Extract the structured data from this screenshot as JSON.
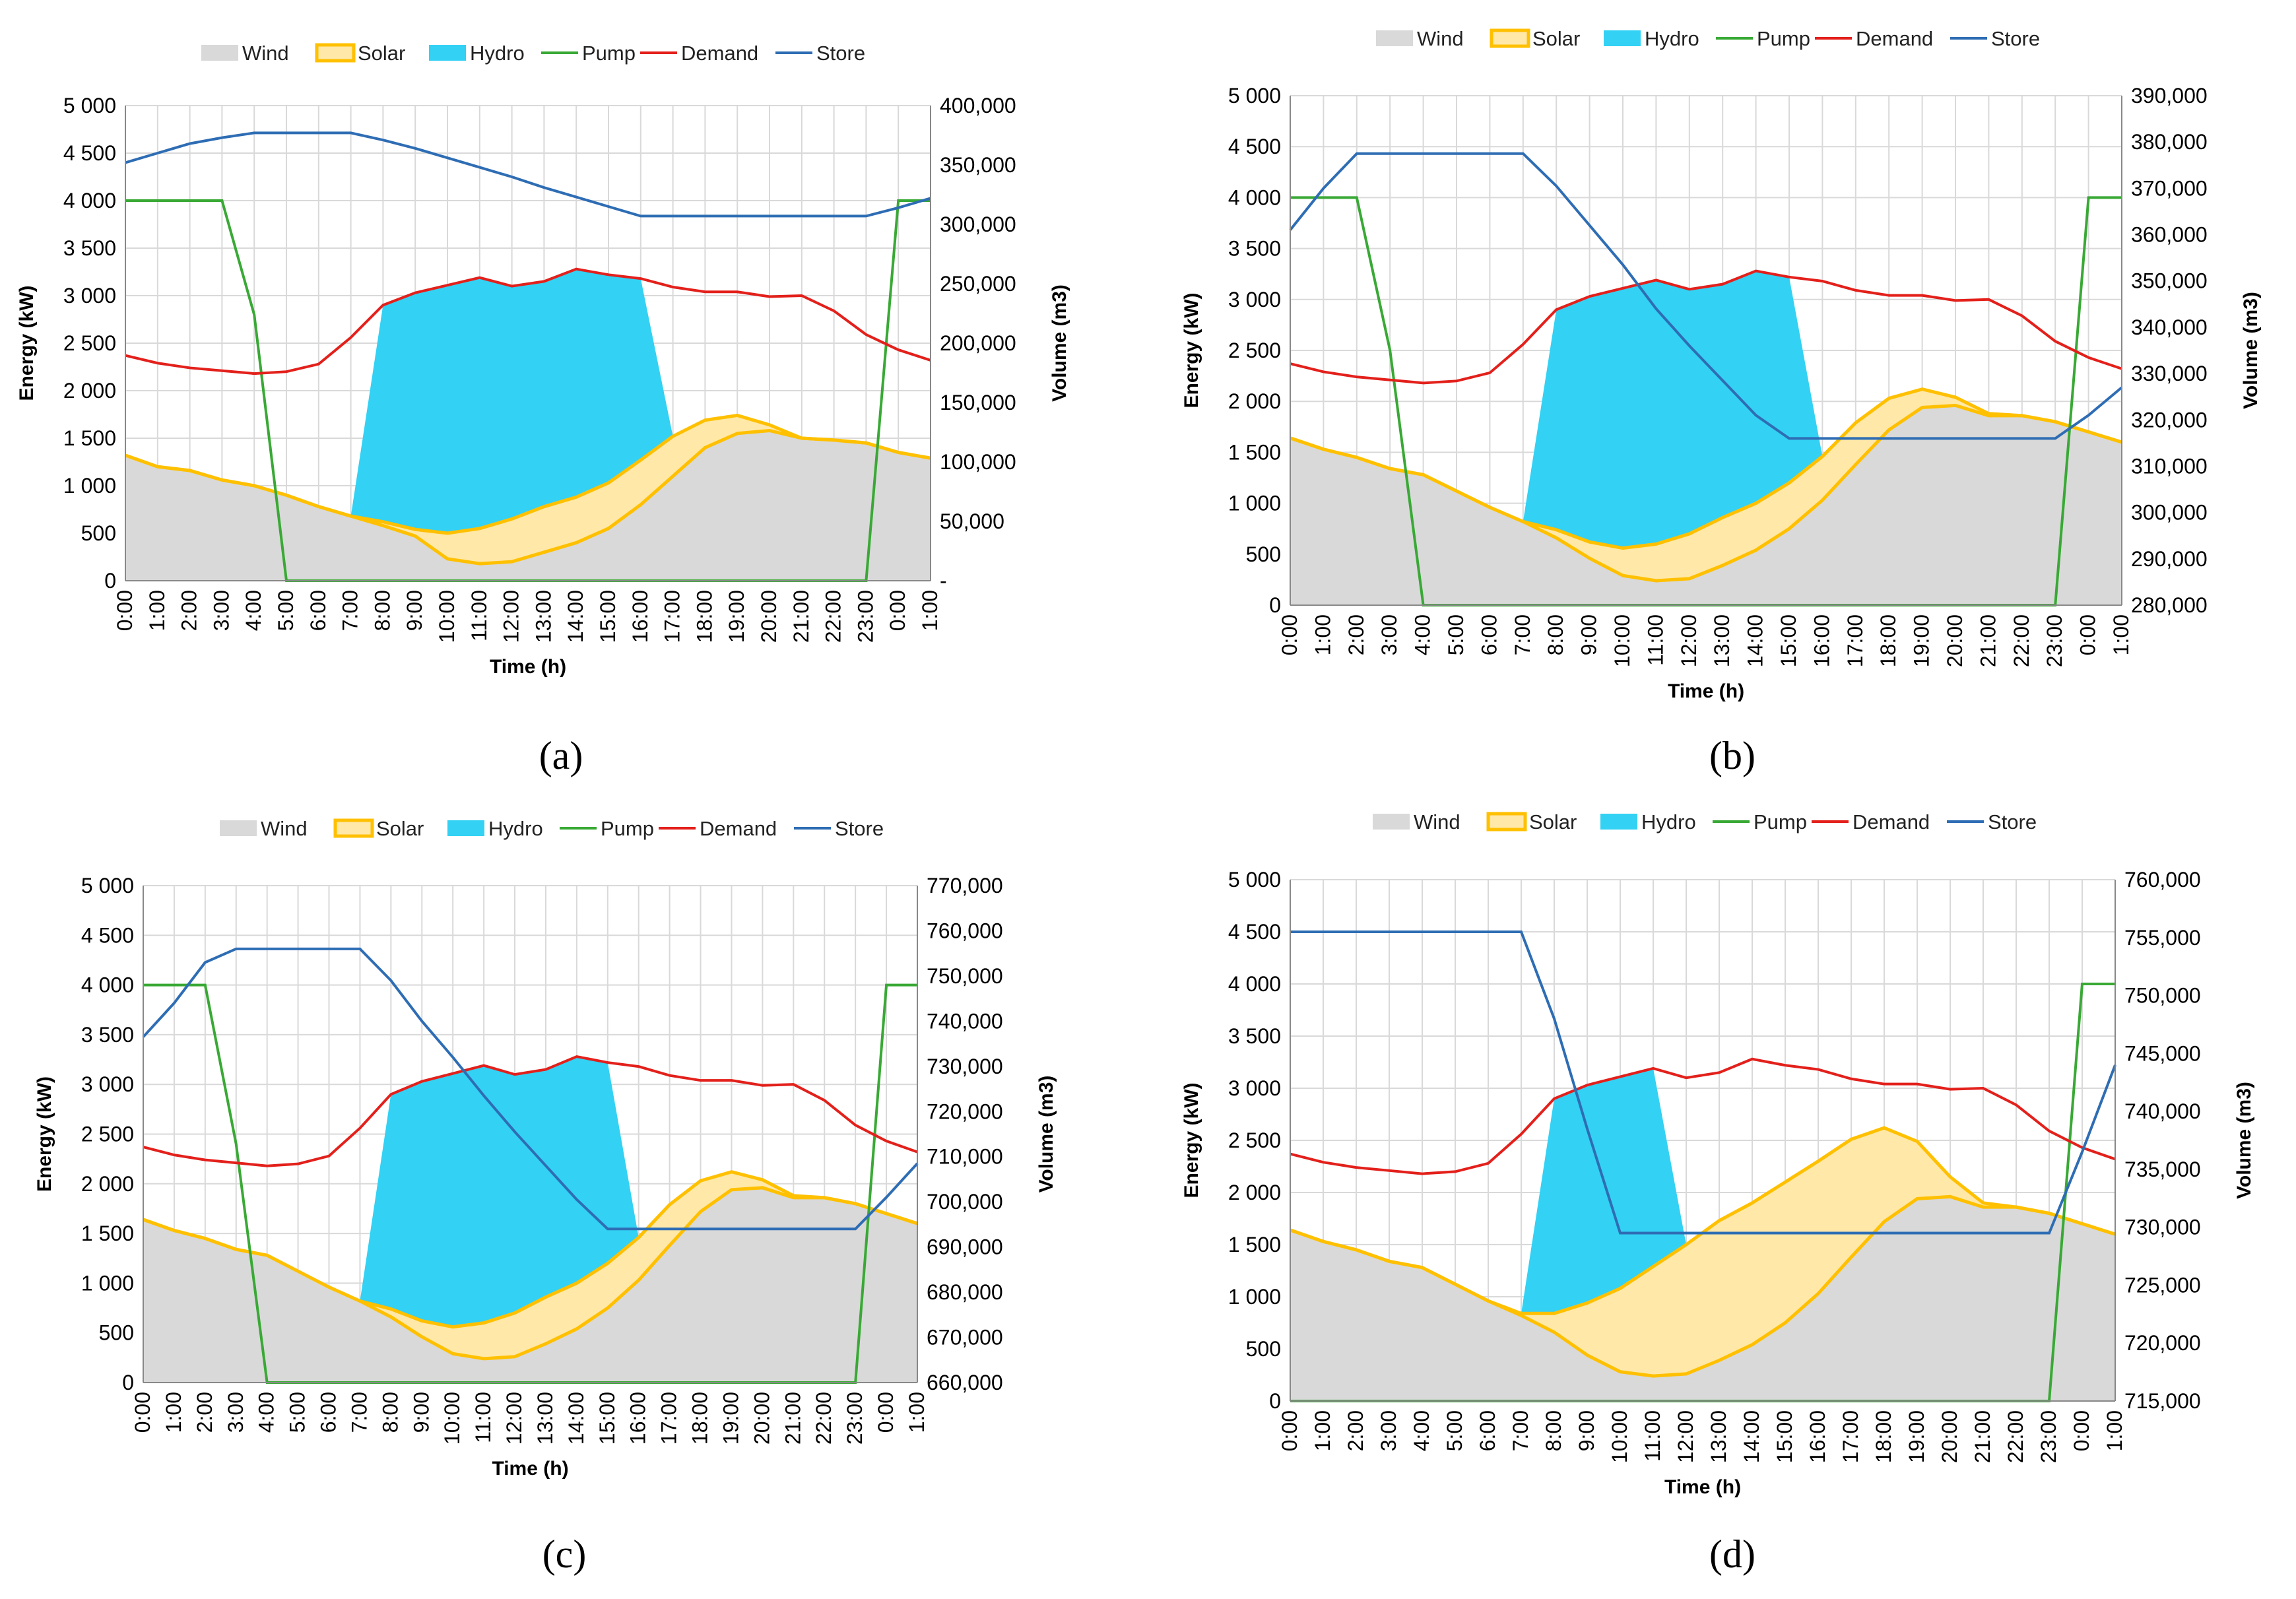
{
  "colors": {
    "wind": "#d9d9d9",
    "solar_line": "#ffc000",
    "solar_fill": "#ffe8a8",
    "hydro": "#33d1f3",
    "pump": "#39a935",
    "demand": "#e3201b",
    "store": "#2e6db4",
    "grid": "#d9d9d9"
  },
  "legend": [
    "Wind",
    "Solar",
    "Hydro",
    "Pump",
    "Demand",
    "Store"
  ],
  "chart_data": [
    {
      "panel": "a",
      "type": "area",
      "caption": "(a)",
      "xlabel": "Time (h)",
      "ylabel": "Energy (kW)",
      "y2label": "Volume (m3)",
      "x": [
        "0:00",
        "1:00",
        "2:00",
        "3:00",
        "4:00",
        "5:00",
        "6:00",
        "7:00",
        "8:00",
        "9:00",
        "10:00",
        "11:00",
        "12:00",
        "13:00",
        "14:00",
        "15:00",
        "16:00",
        "17:00",
        "18:00",
        "19:00",
        "20:00",
        "21:00",
        "22:00",
        "23:00",
        "0:00",
        "1:00"
      ],
      "ylim": [
        0,
        5000
      ],
      "yticks": [
        "0",
        "500",
        "1 000",
        "1 500",
        "2 000",
        "2 500",
        "3 000",
        "3 500",
        "4 000",
        "4 500",
        "5 000"
      ],
      "y2lim": [
        0,
        400000
      ],
      "y2ticks": [
        "-",
        "50,000",
        "100,000",
        "150,000",
        "200,000",
        "250,000",
        "300,000",
        "350,000",
        "400,000"
      ],
      "series": {
        "wind": [
          1320,
          1200,
          1160,
          1060,
          1000,
          900,
          780,
          680,
          580,
          470,
          230,
          180,
          200,
          300,
          400,
          550,
          800,
          1100,
          1400,
          1550,
          1580,
          1500,
          1480,
          1450,
          1350,
          1290
        ],
        "solar": [
          1320,
          1200,
          1160,
          1060,
          1000,
          900,
          780,
          680,
          620,
          540,
          500,
          550,
          650,
          780,
          880,
          1030,
          1270,
          1520,
          1690,
          1740,
          1640,
          1500,
          1480,
          1450,
          1350,
          1290
        ],
        "hydro": [
          null,
          null,
          null,
          null,
          null,
          null,
          null,
          680,
          2900,
          3030,
          3110,
          3190,
          3100,
          3150,
          3280,
          3220,
          3180,
          null,
          null,
          null,
          null,
          null,
          null,
          null,
          null,
          null
        ],
        "hydro_base": [
          null,
          null,
          null,
          null,
          null,
          null,
          null,
          680,
          620,
          540,
          500,
          550,
          650,
          780,
          880,
          1030,
          1270,
          1520,
          null,
          null,
          null,
          null,
          null,
          null,
          null,
          null
        ],
        "pump": [
          4000,
          4000,
          4000,
          4000,
          2800,
          0,
          0,
          0,
          0,
          0,
          0,
          0,
          0,
          0,
          0,
          0,
          0,
          0,
          0,
          0,
          0,
          0,
          0,
          0,
          4000,
          4000
        ],
        "demand": [
          2370,
          2290,
          2240,
          2210,
          2180,
          2200,
          2280,
          2560,
          2900,
          3030,
          3110,
          3190,
          3100,
          3150,
          3280,
          3220,
          3180,
          3090,
          3040,
          3040,
          2990,
          3000,
          2840,
          2590,
          2430,
          2320
        ],
        "store": [
          352000,
          360000,
          368000,
          373000,
          377000,
          377000,
          377000,
          377000,
          371000,
          364000,
          356000,
          348000,
          340000,
          331000,
          323000,
          315000,
          307000,
          307000,
          307000,
          307000,
          307000,
          307000,
          307000,
          307000,
          314000,
          322000
        ]
      }
    },
    {
      "panel": "b",
      "type": "area",
      "caption": "(b)",
      "xlabel": "Time (h)",
      "ylabel": "Energy (kW)",
      "y2label": "Volume (m3)",
      "x": [
        "0:00",
        "1:00",
        "2:00",
        "3:00",
        "4:00",
        "5:00",
        "6:00",
        "7:00",
        "8:00",
        "9:00",
        "10:00",
        "11:00",
        "12:00",
        "13:00",
        "14:00",
        "15:00",
        "16:00",
        "17:00",
        "18:00",
        "19:00",
        "20:00",
        "21:00",
        "22:00",
        "23:00",
        "0:00",
        "1:00"
      ],
      "ylim": [
        0,
        5000
      ],
      "yticks": [
        "0",
        "500",
        "1 000",
        "1 500",
        "2 000",
        "2 500",
        "3 000",
        "3 500",
        "4 000",
        "4 500",
        "5 000"
      ],
      "y2lim": [
        280000,
        390000
      ],
      "y2ticks": [
        "280,000",
        "290,000",
        "300,000",
        "310,000",
        "320,000",
        "330,000",
        "340,000",
        "350,000",
        "360,000",
        "370,000",
        "380,000",
        "390,000"
      ],
      "series": {
        "wind": [
          1640,
          1530,
          1450,
          1340,
          1280,
          1120,
          960,
          820,
          660,
          460,
          290,
          240,
          260,
          390,
          540,
          750,
          1030,
          1380,
          1720,
          1940,
          1960,
          1860,
          1860,
          1800,
          1700,
          1600
        ],
        "solar": [
          1640,
          1530,
          1450,
          1340,
          1280,
          1120,
          960,
          820,
          740,
          620,
          560,
          600,
          700,
          860,
          1000,
          1200,
          1460,
          1790,
          2030,
          2120,
          2040,
          1880,
          1860,
          1800,
          1700,
          1600
        ],
        "hydro": [
          null,
          null,
          null,
          null,
          null,
          null,
          null,
          820,
          2900,
          3030,
          3110,
          3190,
          3100,
          3150,
          3280,
          3220,
          null,
          null,
          null,
          null,
          null,
          null,
          null,
          null,
          null,
          null
        ],
        "hydro_base": [
          null,
          null,
          null,
          null,
          null,
          null,
          null,
          820,
          740,
          620,
          560,
          600,
          700,
          860,
          1000,
          1200,
          1460,
          null,
          null,
          null,
          null,
          null,
          null,
          null,
          null,
          null
        ],
        "pump": [
          4000,
          4000,
          4000,
          2500,
          0,
          0,
          0,
          0,
          0,
          0,
          0,
          0,
          0,
          0,
          0,
          0,
          0,
          0,
          0,
          0,
          0,
          0,
          0,
          0,
          4000,
          4000
        ],
        "demand": [
          2370,
          2290,
          2240,
          2210,
          2180,
          2200,
          2280,
          2560,
          2900,
          3030,
          3110,
          3190,
          3100,
          3150,
          3280,
          3220,
          3180,
          3090,
          3040,
          3040,
          2990,
          3000,
          2840,
          2590,
          2430,
          2320
        ],
        "store": [
          361000,
          370000,
          377500,
          377500,
          377500,
          377500,
          377500,
          377500,
          370500,
          362000,
          353500,
          344000,
          336000,
          328500,
          321000,
          316000,
          316000,
          316000,
          316000,
          316000,
          316000,
          316000,
          316000,
          316000,
          321000,
          327000
        ]
      }
    },
    {
      "panel": "c",
      "type": "area",
      "caption": "(c)",
      "xlabel": "Time (h)",
      "ylabel": "Energy (kW)",
      "y2label": "Volume (m3)",
      "x": [
        "0:00",
        "1:00",
        "2:00",
        "3:00",
        "4:00",
        "5:00",
        "6:00",
        "7:00",
        "8:00",
        "9:00",
        "10:00",
        "11:00",
        "12:00",
        "13:00",
        "14:00",
        "15:00",
        "16:00",
        "17:00",
        "18:00",
        "19:00",
        "20:00",
        "21:00",
        "22:00",
        "23:00",
        "0:00",
        "1:00"
      ],
      "ylim": [
        0,
        5000
      ],
      "yticks": [
        "0",
        "500",
        "1 000",
        "1 500",
        "2 000",
        "2 500",
        "3 000",
        "3 500",
        "4 000",
        "4 500",
        "5 000"
      ],
      "y2lim": [
        660000,
        770000
      ],
      "y2ticks": [
        "660,000",
        "670,000",
        "680,000",
        "690,000",
        "700,000",
        "710,000",
        "720,000",
        "730,000",
        "740,000",
        "750,000",
        "760,000",
        "770,000"
      ],
      "series": {
        "wind": [
          1640,
          1530,
          1450,
          1340,
          1280,
          1120,
          960,
          820,
          660,
          460,
          290,
          240,
          260,
          390,
          540,
          750,
          1030,
          1380,
          1720,
          1940,
          1960,
          1860,
          1860,
          1800,
          1700,
          1600
        ],
        "solar": [
          1640,
          1530,
          1450,
          1340,
          1280,
          1120,
          960,
          820,
          740,
          620,
          560,
          600,
          700,
          860,
          1000,
          1200,
          1460,
          1790,
          2030,
          2120,
          2040,
          1880,
          1860,
          1800,
          1700,
          1600
        ],
        "hydro": [
          null,
          null,
          null,
          null,
          null,
          null,
          null,
          820,
          2900,
          3030,
          3110,
          3190,
          3100,
          3150,
          3280,
          3220,
          null,
          null,
          null,
          null,
          null,
          null,
          null,
          null,
          null,
          null
        ],
        "hydro_base": [
          null,
          null,
          null,
          null,
          null,
          null,
          null,
          820,
          740,
          620,
          560,
          600,
          700,
          860,
          1000,
          1200,
          1460,
          null,
          null,
          null,
          null,
          null,
          null,
          null,
          null,
          null
        ],
        "pump": [
          4000,
          4000,
          4000,
          2400,
          0,
          0,
          0,
          0,
          0,
          0,
          0,
          0,
          0,
          0,
          0,
          0,
          0,
          0,
          0,
          0,
          0,
          0,
          0,
          0,
          4000,
          4000
        ],
        "demand": [
          2370,
          2290,
          2240,
          2210,
          2180,
          2200,
          2280,
          2560,
          2900,
          3030,
          3110,
          3190,
          3100,
          3150,
          3280,
          3220,
          3180,
          3090,
          3040,
          3040,
          2990,
          3000,
          2840,
          2590,
          2430,
          2320
        ],
        "store": [
          736500,
          744000,
          753000,
          756000,
          756000,
          756000,
          756000,
          756000,
          749000,
          740000,
          732000,
          723500,
          715500,
          708000,
          700500,
          694000,
          694000,
          694000,
          694000,
          694000,
          694000,
          694000,
          694000,
          694000,
          701000,
          708500
        ]
      }
    },
    {
      "panel": "d",
      "type": "area",
      "caption": "(d)",
      "xlabel": "Time (h)",
      "ylabel": "Energy (kW)",
      "y2label": "Volume (m3)",
      "x": [
        "0:00",
        "1:00",
        "2:00",
        "3:00",
        "4:00",
        "5:00",
        "6:00",
        "7:00",
        "8:00",
        "9:00",
        "10:00",
        "11:00",
        "12:00",
        "13:00",
        "14:00",
        "15:00",
        "16:00",
        "17:00",
        "18:00",
        "19:00",
        "20:00",
        "21:00",
        "22:00",
        "23:00",
        "0:00",
        "1:00"
      ],
      "ylim": [
        0,
        5000
      ],
      "yticks": [
        "0",
        "500",
        "1 000",
        "1 500",
        "2 000",
        "2 500",
        "3 000",
        "3 500",
        "4 000",
        "4 500",
        "5 000"
      ],
      "y2lim": [
        715000,
        760000
      ],
      "y2ticks": [
        "715,000",
        "720,000",
        "725,000",
        "730,000",
        "735,000",
        "740,000",
        "745,000",
        "750,000",
        "755,000",
        "760,000"
      ],
      "series": {
        "wind": [
          1640,
          1530,
          1450,
          1340,
          1280,
          1120,
          960,
          820,
          660,
          440,
          280,
          240,
          260,
          390,
          540,
          750,
          1030,
          1380,
          1720,
          1940,
          1960,
          1860,
          1860,
          1800,
          1700,
          1600
        ],
        "solar": [
          1640,
          1530,
          1450,
          1340,
          1280,
          1120,
          960,
          840,
          840,
          940,
          1080,
          1290,
          1500,
          1730,
          1900,
          2100,
          2300,
          2510,
          2620,
          2490,
          2150,
          1900,
          1860,
          1800,
          1700,
          1600
        ],
        "hydro": [
          null,
          null,
          null,
          null,
          null,
          null,
          null,
          840,
          2900,
          3030,
          3110,
          3190,
          null,
          null,
          null,
          null,
          null,
          null,
          null,
          null,
          null,
          null,
          null,
          null,
          null,
          null
        ],
        "hydro_base": [
          null,
          null,
          null,
          null,
          null,
          null,
          null,
          840,
          840,
          940,
          1080,
          1290,
          1500,
          null,
          null,
          null,
          null,
          null,
          null,
          null,
          null,
          null,
          null,
          null,
          null,
          null
        ],
        "pump": [
          0,
          0,
          0,
          0,
          0,
          0,
          0,
          0,
          0,
          0,
          0,
          0,
          0,
          0,
          0,
          0,
          0,
          0,
          0,
          0,
          0,
          0,
          0,
          0,
          4000,
          4000
        ],
        "demand": [
          2370,
          2290,
          2240,
          2210,
          2180,
          2200,
          2280,
          2560,
          2900,
          3030,
          3110,
          3190,
          3100,
          3150,
          3280,
          3220,
          3180,
          3090,
          3040,
          3040,
          2990,
          3000,
          2840,
          2590,
          2430,
          2320
        ],
        "store": [
          755500,
          755500,
          755500,
          755500,
          755500,
          755500,
          755500,
          755500,
          748000,
          738500,
          729500,
          729500,
          729500,
          729500,
          729500,
          729500,
          729500,
          729500,
          729500,
          729500,
          729500,
          729500,
          729500,
          729500,
          736500,
          744000
        ]
      }
    }
  ]
}
